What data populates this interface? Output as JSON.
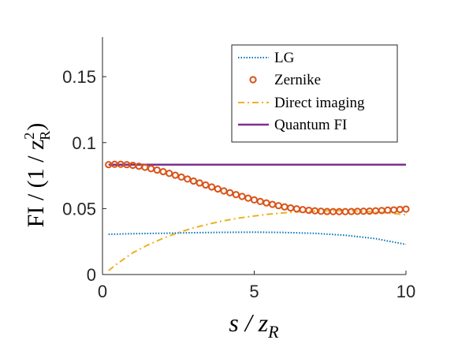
{
  "chart_data": {
    "type": "line",
    "xlabel": "s / z",
    "xlabel_sub": "R",
    "ylabel": "FI / (1 / z",
    "ylabel_sub": "R",
    "ylabel_sup": "2",
    "ylabel_close": ")",
    "xlim": [
      0,
      10
    ],
    "ylim": [
      0,
      0.18
    ],
    "xticks": [
      0,
      5,
      10
    ],
    "xtick_labels": [
      "0",
      "5",
      "10"
    ],
    "yticks": [
      0,
      0.05,
      0.1,
      0.15
    ],
    "ytick_labels": [
      "0",
      "0.05",
      "0.1",
      "0.15"
    ],
    "grid": false,
    "legend_position": "top-right",
    "series": [
      {
        "name": "LG",
        "style": "dotted",
        "color": "#0072BD",
        "x": [
          0.2,
          1,
          2,
          3,
          4,
          5,
          6,
          7,
          8,
          9,
          10
        ],
        "y": [
          0.0305,
          0.031,
          0.0313,
          0.0317,
          0.032,
          0.0321,
          0.0319,
          0.0312,
          0.0298,
          0.0272,
          0.0228
        ]
      },
      {
        "name": "Zernike",
        "style": "markers",
        "color": "#D95319",
        "x": [
          0.2,
          0.4,
          0.6,
          0.8,
          1.0,
          1.2,
          1.4,
          1.6,
          1.8,
          2.0,
          2.2,
          2.4,
          2.6,
          2.8,
          3.0,
          3.2,
          3.4,
          3.6,
          3.8,
          4.0,
          4.2,
          4.4,
          4.6,
          4.8,
          5.0,
          5.2,
          5.4,
          5.6,
          5.8,
          6.0,
          6.2,
          6.4,
          6.6,
          6.8,
          7.0,
          7.2,
          7.4,
          7.6,
          7.8,
          8.0,
          8.2,
          8.4,
          8.6,
          8.8,
          9.0,
          9.2,
          9.4,
          9.6,
          9.8,
          10.0
        ],
        "y": [
          0.0833,
          0.0836,
          0.0836,
          0.0833,
          0.0828,
          0.0821,
          0.0813,
          0.0803,
          0.0792,
          0.078,
          0.0767,
          0.0753,
          0.0739,
          0.0724,
          0.0709,
          0.0694,
          0.0679,
          0.0664,
          0.0649,
          0.0634,
          0.062,
          0.0606,
          0.0592,
          0.0579,
          0.0566,
          0.0554,
          0.0543,
          0.0532,
          0.0522,
          0.0513,
          0.0505,
          0.0498,
          0.0492,
          0.0487,
          0.0483,
          0.048,
          0.0478,
          0.0477,
          0.0477,
          0.0477,
          0.0478,
          0.0479,
          0.048,
          0.0481,
          0.0483,
          0.0485,
          0.0488,
          0.049,
          0.0493,
          0.0496
        ]
      },
      {
        "name": "Direct imaging",
        "style": "dashdot",
        "color": "#EDB120",
        "x": [
          0.2,
          0.5,
          1,
          1.5,
          2,
          2.5,
          3,
          3.5,
          4,
          4.5,
          5,
          5.5,
          6,
          6.5,
          7,
          7.5,
          8,
          8.5,
          9,
          9.5,
          10
        ],
        "y": [
          0.003,
          0.0085,
          0.0165,
          0.0225,
          0.0275,
          0.0318,
          0.0354,
          0.0383,
          0.0408,
          0.0428,
          0.0444,
          0.0458,
          0.0468,
          0.0476,
          0.0481,
          0.0484,
          0.0484,
          0.0481,
          0.0474,
          0.0465,
          0.0452
        ]
      },
      {
        "name": "Quantum FI",
        "style": "solid",
        "color": "#7E2F8E",
        "x": [
          0.2,
          10
        ],
        "y": [
          0.0833,
          0.0833
        ]
      }
    ]
  }
}
